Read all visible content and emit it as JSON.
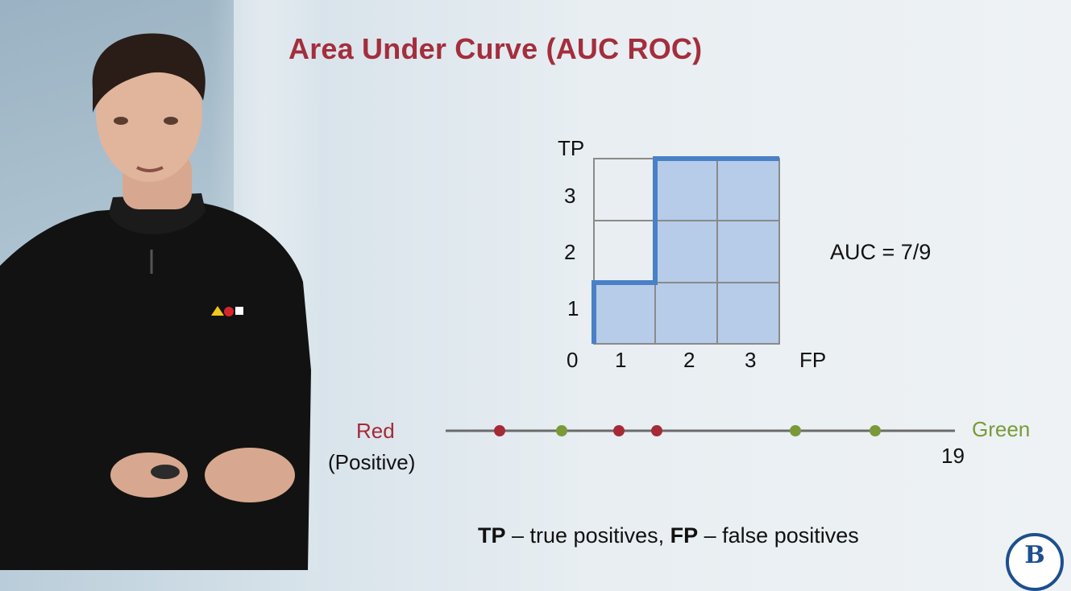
{
  "slide": {
    "title": "Area Under Curve (AUC ROC)",
    "auc_label": "AUC = 7/9",
    "legend": {
      "tp_abbr": "TP",
      "tp_text": " – true positives, ",
      "fp_abbr": "FP",
      "fp_text": " – false positives"
    }
  },
  "roc_grid": {
    "y_axis_label": "TP",
    "x_axis_label": "FP",
    "origin_label": "0",
    "x_ticks": [
      "1",
      "2",
      "3"
    ],
    "y_ticks": [
      "1",
      "2",
      "3"
    ],
    "shaded_cells": 7,
    "total_cells": 9,
    "curve_steps": "up1-right1-up2-right2",
    "colors": {
      "curve": "#4a80c6",
      "fill": "#b6cce8",
      "grid": "#8a8a8a"
    }
  },
  "number_line": {
    "left_label": "Red",
    "left_sublabel": "(Positive)",
    "right_label": "Green",
    "right_value": "19",
    "points": [
      {
        "color": "red"
      },
      {
        "color": "green"
      },
      {
        "color": "red"
      },
      {
        "color": "red"
      },
      {
        "color": "green"
      },
      {
        "color": "green"
      }
    ],
    "colors": {
      "red": "#a52a36",
      "green": "#7a9a3a",
      "line": "#6b6b6b"
    }
  },
  "logo": {
    "text": "В"
  }
}
